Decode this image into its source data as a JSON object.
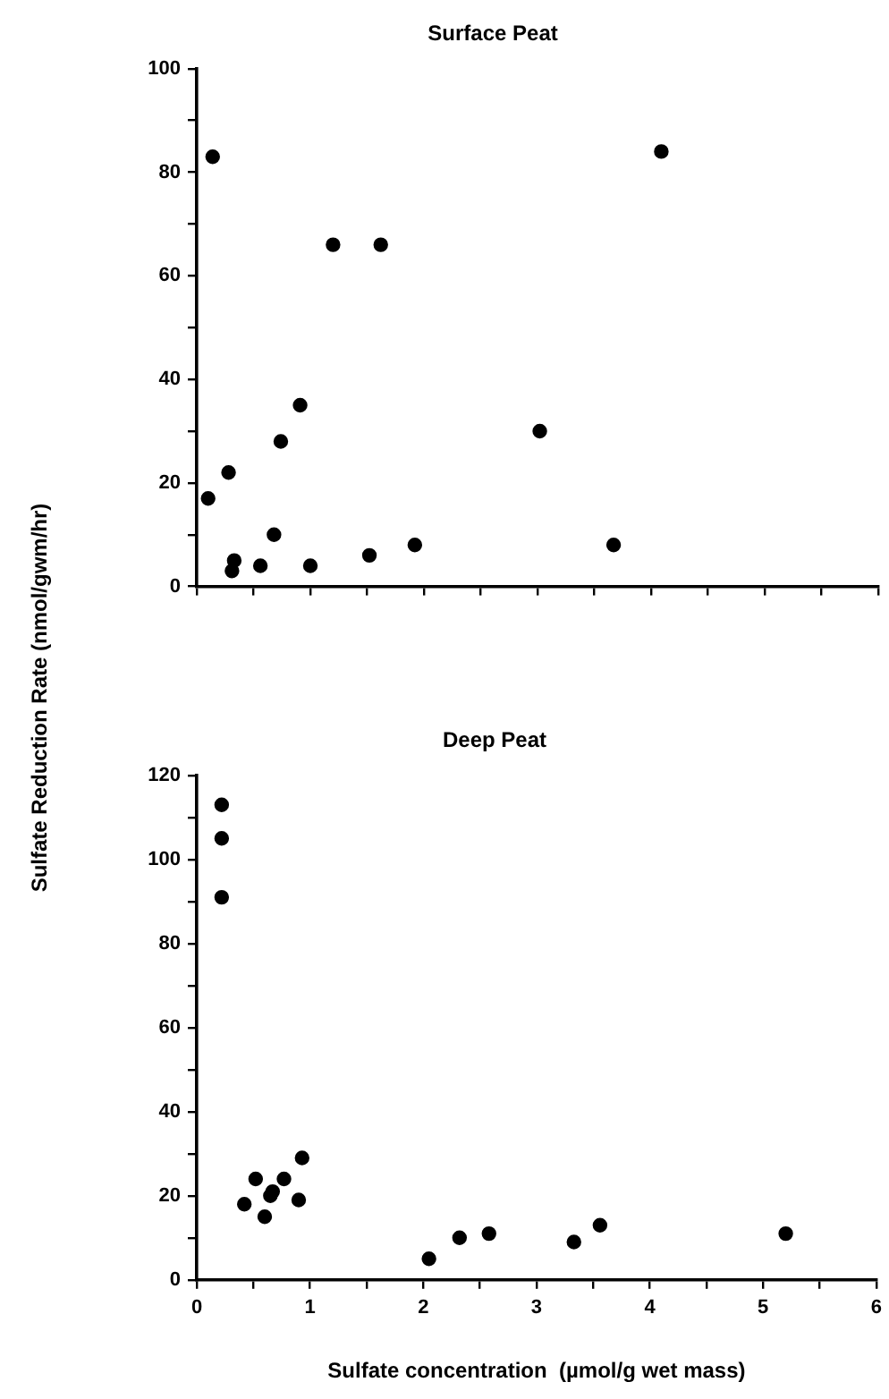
{
  "chart_data": [
    {
      "type": "scatter",
      "title": "Surface Peat",
      "ylabel": "Sulfate  Reduction  Rate  (nmol/gwm/hr)",
      "grid": false,
      "marker": "circle",
      "tick_labels": "y",
      "xlim": [
        0,
        6
      ],
      "xticks": [
        {
          "value": 0,
          "label": null
        },
        {
          "value": 0.5,
          "label": null
        },
        {
          "value": 1,
          "label": null
        },
        {
          "value": 1.5,
          "label": null
        },
        {
          "value": 2,
          "label": null
        },
        {
          "value": 2.5,
          "label": null
        },
        {
          "value": 3,
          "label": null
        },
        {
          "value": 3.5,
          "label": null
        },
        {
          "value": 4,
          "label": null
        },
        {
          "value": 4.5,
          "label": null
        },
        {
          "value": 5,
          "label": null
        },
        {
          "value": 5.5,
          "label": null
        },
        {
          "value": 6,
          "label": null
        }
      ],
      "ylim": [
        0,
        100
      ],
      "yticks": [
        0,
        {
          "value": 10,
          "label": null
        },
        20,
        {
          "value": 30,
          "label": null
        },
        40,
        {
          "value": 50,
          "label": null
        },
        60,
        {
          "value": 70,
          "label": null
        },
        80,
        {
          "value": 90,
          "label": null
        },
        100
      ],
      "series": [
        {
          "color": "#000000",
          "x": [
            0.1,
            0.14,
            0.28,
            0.31,
            0.33,
            0.56,
            0.68,
            0.74,
            0.91,
            1.0,
            1.2,
            1.62,
            1.52,
            1.92,
            3.02,
            3.67,
            4.09
          ],
          "values": [
            17,
            83,
            22,
            3,
            5,
            4,
            10,
            28,
            35,
            4,
            66,
            66,
            6,
            8,
            30,
            8,
            84
          ]
        }
      ]
    },
    {
      "type": "scatter",
      "title": "Deep Peat",
      "xlabel": "Sulfate concentration  (µmol/g wet mass)",
      "grid": false,
      "marker": "circle",
      "xlim": [
        0,
        6
      ],
      "xticks": [
        0,
        {
          "value": 0.5,
          "label": null
        },
        1,
        {
          "value": 1.5,
          "label": null
        },
        2,
        {
          "value": 2.5,
          "label": null
        },
        3,
        {
          "value": 3.5,
          "label": null
        },
        4,
        {
          "value": 4.5,
          "label": null
        },
        5,
        {
          "value": 5.5,
          "label": null
        },
        6
      ],
      "ylim": [
        0,
        120
      ],
      "yticks": [
        0,
        {
          "value": 10,
          "label": null
        },
        20,
        {
          "value": 30,
          "label": null
        },
        40,
        {
          "value": 50,
          "label": null
        },
        60,
        {
          "value": 70,
          "label": null
        },
        80,
        {
          "value": 90,
          "label": null
        },
        100,
        {
          "value": 110,
          "label": null
        },
        120
      ],
      "series": [
        {
          "color": "#000000",
          "x": [
            0.22,
            0.22,
            0.22,
            0.42,
            0.52,
            0.6,
            0.65,
            0.67,
            0.77,
            0.9,
            0.93,
            2.05,
            2.32,
            2.58,
            3.33,
            3.56,
            5.2
          ],
          "values": [
            113,
            105,
            91,
            18,
            24,
            15,
            20,
            21,
            24,
            19,
            29,
            5,
            10,
            11,
            9,
            13,
            11
          ]
        }
      ]
    }
  ]
}
